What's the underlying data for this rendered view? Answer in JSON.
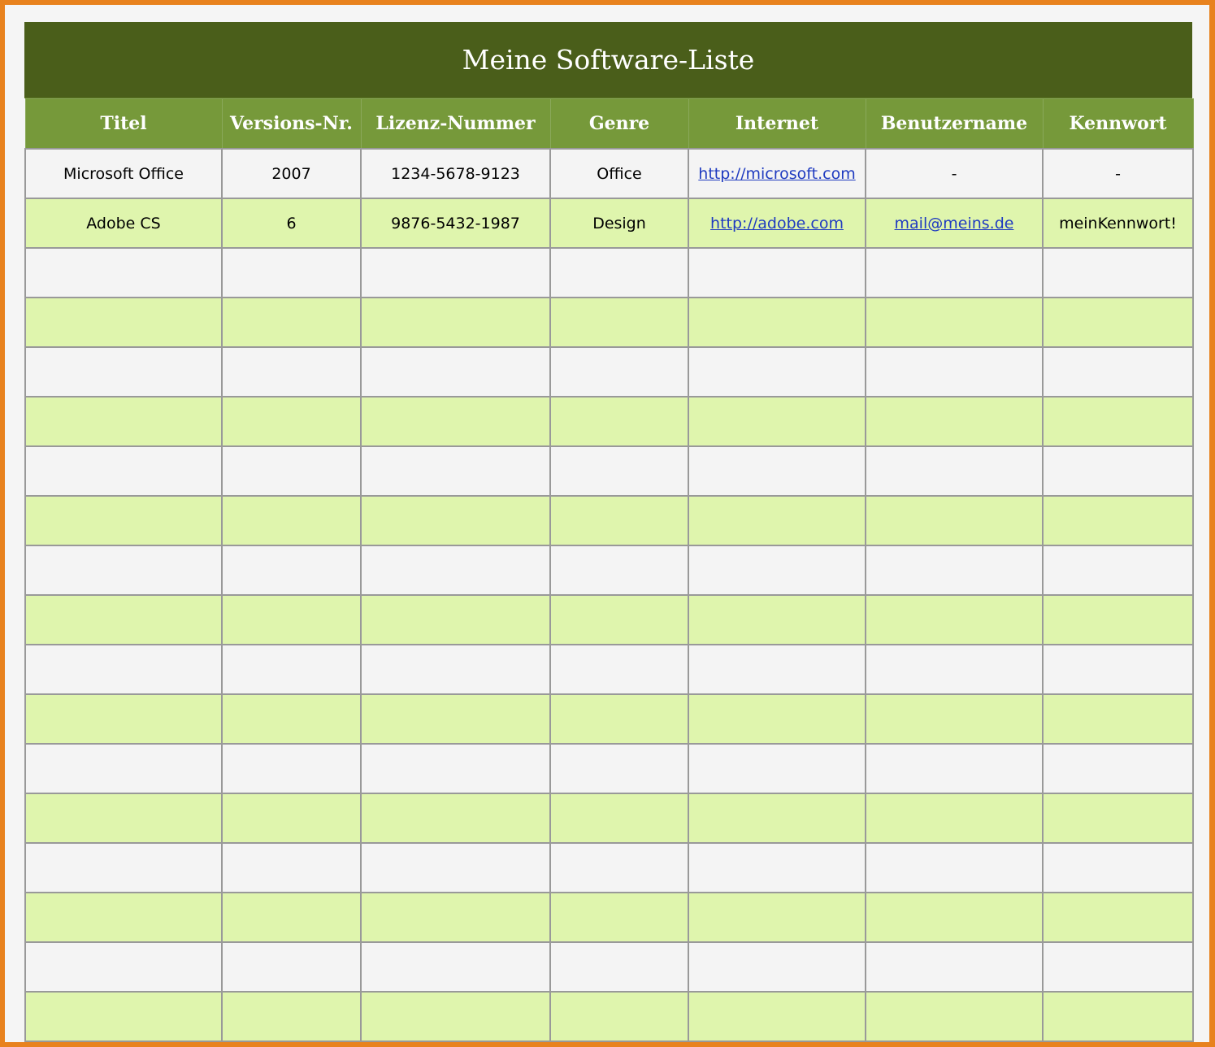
{
  "title": "Meine Software-Liste",
  "columns": [
    "Titel",
    "Versions-Nr.",
    "Lizenz-Nummer",
    "Genre",
    "Internet",
    "Benutzername",
    "Kennwort"
  ],
  "rows": [
    [
      "Microsoft Office",
      "2007",
      "1234-5678-9123",
      "Office",
      "http://microsoft.com",
      "-",
      "-"
    ],
    [
      "Adobe CS",
      "6",
      "9876-5432-1987",
      "Design",
      "http://adobe.com",
      "mail@meins.de",
      "meinKennwort!"
    ]
  ],
  "empty_rows": 16,
  "colors": {
    "title_bg": "#4a5e1a",
    "header_bg": "#76993a",
    "row_alt": "#dff5ad",
    "row": "#f4f4f4",
    "frame": "#e8821e",
    "link": "#1f3bc0"
  }
}
